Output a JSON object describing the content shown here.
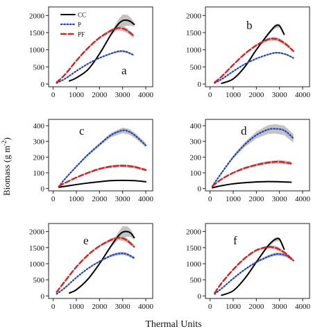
{
  "figure": {
    "xlabel": "Thermal Units",
    "ylabel": "Biomass (g m",
    "ylabel_sup": "-2",
    "ylabel_close": ")"
  },
  "legend": [
    {
      "label": "CC",
      "style": "solid",
      "color": "#000000"
    },
    {
      "label": "P",
      "style": "dotted",
      "color": "#1f3fbf"
    },
    {
      "label": "PF",
      "style": "dashed",
      "color": "#d62020"
    }
  ],
  "chart_data": [
    {
      "panel": "a",
      "type": "line",
      "xticks": [
        0,
        1000,
        2000,
        3000,
        4000
      ],
      "yticks": [
        0,
        500,
        1000,
        1500,
        2000
      ],
      "xlim": [
        -200,
        4300
      ],
      "ylim": [
        -80,
        2250
      ],
      "band_color": "#bdbdbd",
      "series": [
        {
          "name": "CC",
          "color": "#000000",
          "x": [
            700,
            1000,
            1500,
            2000,
            2500,
            2800,
            3000,
            3200,
            3350,
            3500
          ],
          "y": [
            90,
            180,
            420,
            880,
            1450,
            1740,
            1850,
            1860,
            1820,
            1740
          ],
          "band": [
            0,
            0,
            0,
            0,
            40,
            120,
            180,
            160,
            120,
            60
          ]
        },
        {
          "name": "P",
          "color": "#1f3fbf",
          "x": [
            150,
            500,
            1000,
            1500,
            2000,
            2500,
            2800,
            3000,
            3200,
            3500
          ],
          "y": [
            30,
            150,
            380,
            590,
            760,
            890,
            950,
            960,
            930,
            840
          ],
          "band": [
            0,
            0,
            0,
            0,
            10,
            20,
            30,
            30,
            30,
            20
          ]
        },
        {
          "name": "PF",
          "color": "#d62020",
          "x": [
            150,
            500,
            1000,
            1500,
            2000,
            2500,
            2800,
            3000,
            3200,
            3500
          ],
          "y": [
            50,
            270,
            680,
            1050,
            1350,
            1560,
            1630,
            1620,
            1560,
            1390
          ],
          "band": [
            0,
            0,
            10,
            20,
            30,
            50,
            70,
            80,
            70,
            50
          ]
        }
      ]
    },
    {
      "panel": "b",
      "type": "line",
      "xticks": [
        0,
        1000,
        2000,
        3000,
        4000
      ],
      "yticks": [
        0,
        500,
        1000,
        1500,
        2000
      ],
      "xlim": [
        -200,
        4300
      ],
      "ylim": [
        -80,
        2250
      ],
      "band_color": "#bdbdbd",
      "series": [
        {
          "name": "CC",
          "color": "#000000",
          "x": [
            500,
            1000,
            1500,
            2000,
            2500,
            2800,
            3000,
            3200
          ],
          "y": [
            20,
            150,
            500,
            1000,
            1450,
            1680,
            1700,
            1450
          ],
          "band": [
            0,
            0,
            0,
            10,
            40,
            60,
            60,
            40
          ]
        },
        {
          "name": "P",
          "color": "#1f3fbf",
          "x": [
            200,
            500,
            1000,
            1500,
            2000,
            2500,
            2800,
            3000,
            3300,
            3600
          ],
          "y": [
            30,
            140,
            370,
            580,
            740,
            860,
            910,
            910,
            860,
            760
          ],
          "band": [
            0,
            0,
            0,
            5,
            10,
            15,
            20,
            20,
            20,
            15
          ]
        },
        {
          "name": "PF",
          "color": "#d62020",
          "x": [
            200,
            500,
            1000,
            1500,
            2000,
            2500,
            2800,
            3000,
            3300,
            3600
          ],
          "y": [
            50,
            220,
            560,
            880,
            1130,
            1300,
            1320,
            1280,
            1150,
            960
          ],
          "band": [
            0,
            0,
            10,
            20,
            30,
            50,
            60,
            60,
            50,
            40
          ]
        }
      ]
    },
    {
      "panel": "c",
      "type": "line",
      "xticks": [
        0,
        1000,
        2000,
        3000,
        4000
      ],
      "yticks": [
        0,
        100,
        200,
        300,
        400
      ],
      "xlim": [
        -200,
        4300
      ],
      "ylim": [
        -15,
        440
      ],
      "band_color": "#bdbdbd",
      "series": [
        {
          "name": "CC",
          "color": "#000000",
          "x": [
            250,
            1000,
            1500,
            2000,
            2500,
            3000,
            3500,
            4000
          ],
          "y": [
            8,
            25,
            35,
            43,
            50,
            52,
            50,
            43
          ],
          "band": [
            0,
            1,
            1,
            2,
            2,
            3,
            3,
            3
          ]
        },
        {
          "name": "P",
          "color": "#1f3fbf",
          "x": [
            250,
            500,
            1000,
            1500,
            2000,
            2500,
            3000,
            3300,
            3600,
            4000
          ],
          "y": [
            12,
            60,
            140,
            215,
            280,
            340,
            370,
            360,
            330,
            275
          ],
          "band": [
            0,
            2,
            5,
            8,
            10,
            14,
            18,
            18,
            16,
            14
          ]
        },
        {
          "name": "PF",
          "color": "#d62020",
          "x": [
            250,
            500,
            1000,
            1500,
            2000,
            2500,
            3000,
            3500,
            4000
          ],
          "y": [
            15,
            35,
            70,
            100,
            125,
            140,
            145,
            138,
            118
          ],
          "band": [
            0,
            2,
            3,
            5,
            7,
            9,
            10,
            10,
            8
          ]
        }
      ]
    },
    {
      "panel": "d",
      "type": "line",
      "xticks": [
        0,
        1000,
        2000,
        3000,
        4000
      ],
      "yticks": [
        0,
        100,
        200,
        300,
        400
      ],
      "xlim": [
        -200,
        4300
      ],
      "ylim": [
        -15,
        440
      ],
      "band_color": "#bdbdbd",
      "series": [
        {
          "name": "CC",
          "color": "#000000",
          "x": [
            100,
            500,
            1000,
            1500,
            2000,
            2500,
            3000,
            3500
          ],
          "y": [
            5,
            18,
            30,
            37,
            42,
            44,
            43,
            40
          ],
          "band": [
            0,
            1,
            2,
            2,
            3,
            4,
            4,
            4
          ]
        },
        {
          "name": "P",
          "color": "#1f3fbf",
          "x": [
            100,
            500,
            1000,
            1500,
            2000,
            2500,
            2800,
            3200,
            3600
          ],
          "y": [
            15,
            100,
            200,
            280,
            340,
            375,
            380,
            370,
            320
          ],
          "band": [
            0,
            4,
            10,
            16,
            22,
            28,
            30,
            30,
            28
          ]
        },
        {
          "name": "PF",
          "color": "#d62020",
          "x": [
            100,
            500,
            1000,
            1500,
            2000,
            2500,
            3000,
            3500
          ],
          "y": [
            15,
            60,
            100,
            130,
            150,
            165,
            170,
            160
          ],
          "band": [
            0,
            3,
            5,
            7,
            9,
            10,
            12,
            12
          ]
        }
      ]
    },
    {
      "panel": "e",
      "type": "line",
      "xticks": [
        0,
        1000,
        2000,
        3000,
        4000
      ],
      "yticks": [
        0,
        500,
        1000,
        1500,
        2000
      ],
      "xlim": [
        -200,
        4300
      ],
      "ylim": [
        -80,
        2250
      ],
      "band_color": "#bdbdbd",
      "series": [
        {
          "name": "CC",
          "color": "#000000",
          "x": [
            700,
            1000,
            1500,
            2000,
            2500,
            2800,
            3000,
            3200,
            3350,
            3500
          ],
          "y": [
            90,
            190,
            520,
            1000,
            1550,
            1850,
            1980,
            2000,
            1950,
            1810
          ],
          "band": [
            0,
            0,
            0,
            0,
            40,
            120,
            180,
            160,
            120,
            60
          ]
        },
        {
          "name": "P",
          "color": "#1f3fbf",
          "x": [
            150,
            500,
            1000,
            1500,
            2000,
            2500,
            2800,
            3000,
            3200,
            3500
          ],
          "y": [
            60,
            250,
            570,
            850,
            1070,
            1250,
            1310,
            1320,
            1290,
            1180
          ],
          "band": [
            0,
            0,
            0,
            10,
            20,
            40,
            50,
            50,
            50,
            40
          ]
        },
        {
          "name": "PF",
          "color": "#d62020",
          "x": [
            150,
            500,
            1000,
            1500,
            2000,
            2500,
            2800,
            3000,
            3200,
            3500
          ],
          "y": [
            120,
            450,
            900,
            1270,
            1550,
            1740,
            1800,
            1790,
            1720,
            1530
          ],
          "band": [
            0,
            0,
            10,
            20,
            30,
            50,
            70,
            80,
            70,
            50
          ]
        }
      ]
    },
    {
      "panel": "f",
      "type": "line",
      "xticks": [
        0,
        1000,
        2000,
        3000,
        4000
      ],
      "yticks": [
        0,
        500,
        1000,
        1500,
        2000
      ],
      "xlim": [
        -200,
        4300
      ],
      "ylim": [
        -80,
        2250
      ],
      "band_color": "#bdbdbd",
      "series": [
        {
          "name": "CC",
          "color": "#000000",
          "x": [
            500,
            1000,
            1500,
            2000,
            2500,
            2800,
            3000,
            3200
          ],
          "y": [
            20,
            160,
            540,
            1050,
            1550,
            1750,
            1760,
            1450
          ],
          "band": [
            0,
            0,
            0,
            10,
            40,
            60,
            60,
            40
          ]
        },
        {
          "name": "P",
          "color": "#1f3fbf",
          "x": [
            200,
            500,
            1000,
            1500,
            2000,
            2500,
            2800,
            3000,
            3300,
            3600
          ],
          "y": [
            60,
            230,
            540,
            820,
            1050,
            1220,
            1290,
            1300,
            1250,
            1100
          ],
          "band": [
            0,
            0,
            10,
            20,
            30,
            40,
            50,
            50,
            50,
            40
          ]
        },
        {
          "name": "PF",
          "color": "#d62020",
          "x": [
            200,
            500,
            1000,
            1500,
            2000,
            2500,
            2800,
            3000,
            3300,
            3600
          ],
          "y": [
            90,
            400,
            820,
            1170,
            1420,
            1520,
            1500,
            1440,
            1300,
            1100
          ],
          "band": [
            0,
            0,
            10,
            20,
            30,
            50,
            60,
            60,
            50,
            40
          ]
        }
      ]
    }
  ]
}
